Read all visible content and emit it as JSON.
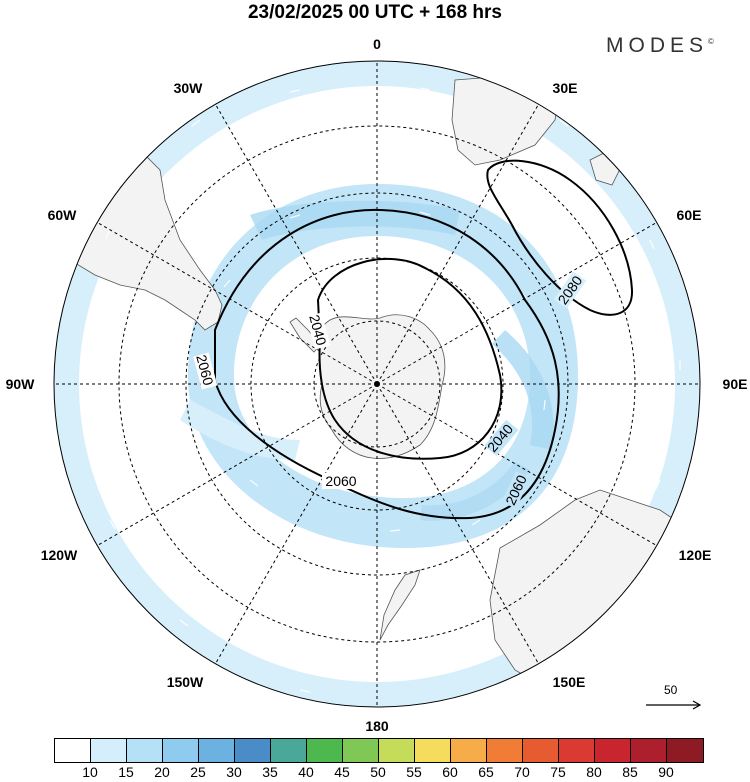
{
  "header": {
    "title": "23/02/2025  00 UTC  + 168 hrs",
    "brand": "MODES",
    "brand_mark": "©"
  },
  "map": {
    "projection": "polar stereographic (south pole)",
    "longitude_labels": {
      "n": "0",
      "e30": "30E",
      "e60": "60E",
      "e90": "90E",
      "e120": "120E",
      "e150": "150E",
      "s": "180",
      "w150": "150W",
      "w120": "120W",
      "w90": "90W",
      "w60": "60W",
      "w30": "30W"
    },
    "contour_labels": {
      "c2080": "2080",
      "c2040a": "2040",
      "c2040b": "2040",
      "c2060a": "2060",
      "c2060b": "2060",
      "c2060c": "2060"
    },
    "colors": {
      "wind_light": "#d6effb",
      "wind_mid": "#bfe4f7",
      "wind_strong": "#a9d8f2",
      "land": "#f3f3f3"
    }
  },
  "reference_vector": {
    "label": "50"
  },
  "colorbar": {
    "colors": [
      "#ffffff",
      "#d4eefb",
      "#b5e1f7",
      "#8ecbef",
      "#6bb2e0",
      "#4a8cc8",
      "#4aa89a",
      "#4cb84e",
      "#80c855",
      "#c5dc5a",
      "#f5dc5c",
      "#f6ad49",
      "#f07c36",
      "#e65c30",
      "#db3a32",
      "#c8252f",
      "#ad1f2c",
      "#8e1b24"
    ],
    "tick_labels": [
      "10",
      "15",
      "20",
      "25",
      "30",
      "35",
      "40",
      "45",
      "50",
      "55",
      "60",
      "65",
      "70",
      "75",
      "80",
      "85",
      "90"
    ]
  }
}
